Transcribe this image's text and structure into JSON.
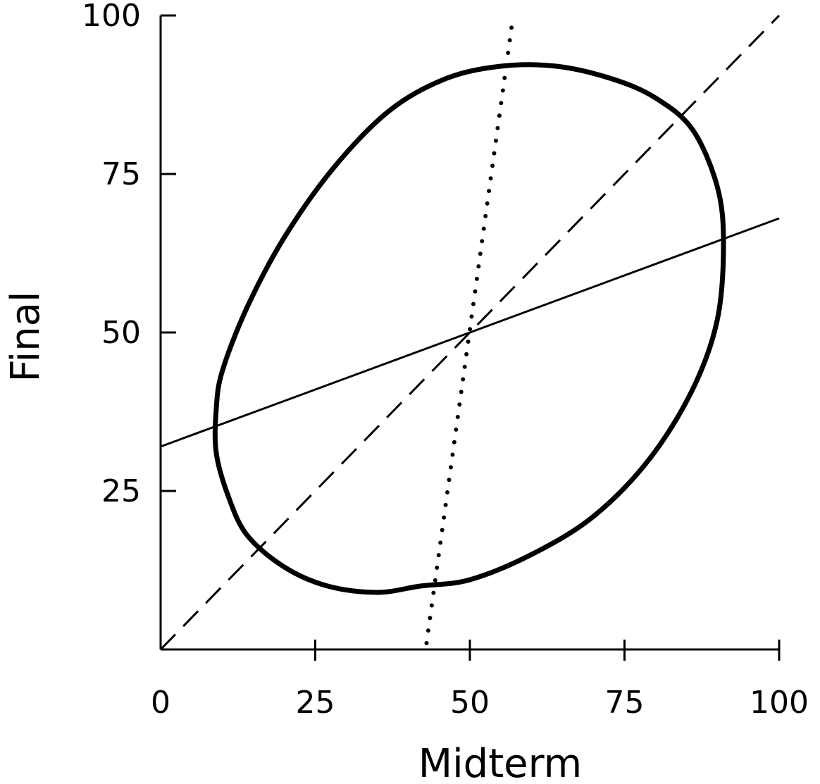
{
  "chart_data": {
    "type": "line",
    "title": "",
    "xlabel": "Midterm",
    "ylabel": "Final",
    "xlim": [
      0,
      100
    ],
    "ylim": [
      0,
      100
    ],
    "x_ticks": [
      0,
      25,
      50,
      75,
      100
    ],
    "y_ticks": [
      25,
      50,
      75,
      100
    ],
    "x_tick_labels": [
      "0",
      "25",
      "50",
      "75",
      "100"
    ],
    "y_tick_labels": [
      "25",
      "50",
      "75",
      "100"
    ],
    "grid": false,
    "legend": "none",
    "ellipse": {
      "points": [
        [
          9,
          38
        ],
        [
          10,
          44
        ],
        [
          14,
          54
        ],
        [
          20,
          65
        ],
        [
          28,
          76
        ],
        [
          37,
          85
        ],
        [
          46,
          90
        ],
        [
          55,
          92
        ],
        [
          64,
          92
        ],
        [
          73,
          90
        ],
        [
          80,
          87
        ],
        [
          86,
          82
        ],
        [
          90,
          73
        ],
        [
          91,
          64
        ],
        [
          90,
          52
        ],
        [
          86,
          41
        ],
        [
          79,
          30
        ],
        [
          70,
          21
        ],
        [
          60,
          15
        ],
        [
          50,
          11
        ],
        [
          42,
          10
        ],
        [
          35,
          9
        ],
        [
          27,
          10
        ],
        [
          20,
          13
        ],
        [
          14,
          18
        ],
        [
          11,
          24
        ],
        [
          9,
          31
        ],
        [
          9,
          38
        ]
      ],
      "style": "solid-thick"
    },
    "series": [
      {
        "style": "solid",
        "x": [
          0,
          100
        ],
        "y": [
          32,
          68
        ]
      },
      {
        "style": "dashed",
        "x": [
          0,
          100
        ],
        "y": [
          0,
          100
        ]
      },
      {
        "style": "dotted",
        "x": [
          43,
          57
        ],
        "y": [
          1,
          100
        ]
      }
    ],
    "colors": {
      "ink": "#000000",
      "background": "#ffffff"
    }
  }
}
